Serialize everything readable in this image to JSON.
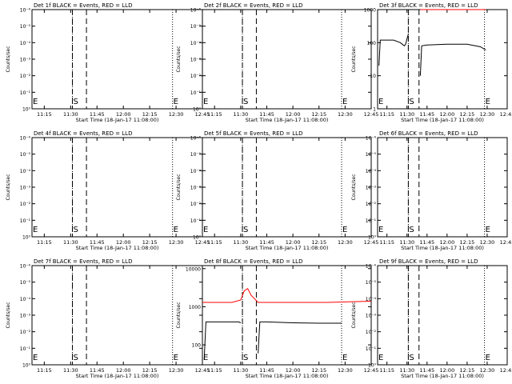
{
  "colors": {
    "events": "#000000",
    "lld": "#ff0000",
    "axes": "#000000"
  },
  "common": {
    "xlabel": "Start Time (18-Jan-17 11:08:00)",
    "ylabel": "Counts/sec",
    "x_ticks": [
      "11:15",
      "11:30",
      "11:45",
      "12:00",
      "12:15",
      "12:30",
      "12:45"
    ],
    "start_marker": "S",
    "end_marker": "E",
    "dotted_lines_x": [
      "11:08",
      "11:31",
      "12:28"
    ],
    "dashed_lines_x": [
      "11:31",
      "11:39"
    ]
  },
  "chart_data": [
    {
      "type": "line",
      "title": "Det 1f BLACK = Events, RED = LLD",
      "xlabel": "Start Time (18-Jan-17 11:08:00)",
      "ylabel": "Counts/sec",
      "y_scale": "log",
      "y_ticks": [
        "10⁰",
        "10⁻¹",
        "10⁻²",
        "10⁻³",
        "10⁻⁴",
        "10⁻⁵",
        "10⁻⁶"
      ],
      "series": []
    },
    {
      "type": "line",
      "title": "Det 2f BLACK = Events, RED = LLD",
      "xlabel": "Start Time (18-Jan-17 11:08:00)",
      "ylabel": "Counts/sec",
      "y_scale": "log",
      "y_ticks": [
        "10⁰",
        "10⁻¹",
        "10⁻²",
        "10⁻³",
        "10⁻⁴",
        "10⁻⁵",
        "10⁻⁶"
      ],
      "series": []
    },
    {
      "type": "line",
      "title": "Det 3f BLACK = Events, RED = LLD",
      "xlabel": "Start Time (18-Jan-17 11:08:00)",
      "ylabel": "Counts/sec",
      "y_scale": "log",
      "ylim": [
        1,
        1000
      ],
      "y_ticks": [
        "1",
        "10",
        "100",
        "1000"
      ],
      "series": [
        {
          "color": "#000000",
          "x": [
            "11:09",
            "11:10",
            "11:20",
            "11:25",
            "11:28",
            "11:29",
            "11:30",
            "11:31"
          ],
          "y": [
            20,
            120,
            120,
            100,
            80,
            90,
            130,
            180
          ]
        },
        {
          "color": "#000000",
          "x": [
            "11:40",
            "11:41",
            "11:45",
            "12:00",
            "12:15",
            "12:25",
            "12:29"
          ],
          "y": [
            10,
            80,
            85,
            90,
            90,
            75,
            60
          ]
        },
        {
          "color": "#ff0000",
          "x": [
            "11:40",
            "12:29"
          ],
          "y": [
            1000,
            1000
          ]
        }
      ]
    },
    {
      "type": "line",
      "title": "Det 4f BLACK = Events, RED = LLD",
      "xlabel": "Start Time (18-Jan-17 11:08:00)",
      "ylabel": "Counts/sec",
      "y_scale": "log",
      "y_ticks": [
        "10⁰",
        "10⁻¹",
        "10⁻²",
        "10⁻³",
        "10⁻⁴",
        "10⁻⁵",
        "10⁻⁶"
      ],
      "series": []
    },
    {
      "type": "line",
      "title": "Det 5f BLACK = Events, RED = LLD",
      "xlabel": "Start Time (18-Jan-17 11:08:00)",
      "ylabel": "Counts/sec",
      "y_scale": "log",
      "y_ticks": [
        "10⁰",
        "10⁻¹",
        "10⁻²",
        "10⁻³",
        "10⁻⁴",
        "10⁻⁵",
        "10⁻⁶"
      ],
      "series": []
    },
    {
      "type": "line",
      "title": "Det 6f BLACK = Events, RED = LLD",
      "xlabel": "Start Time (18-Jan-17 11:08:00)",
      "ylabel": "Counts/sec",
      "y_scale": "log",
      "y_ticks": [
        "10⁰",
        "10⁻¹",
        "10⁻²",
        "10⁻³",
        "10⁻⁴",
        "10⁻⁵",
        "10⁻⁶"
      ],
      "series": []
    },
    {
      "type": "line",
      "title": "Det 7f BLACK = Events, RED = LLD",
      "xlabel": "Start Time (18-Jan-17 11:08:00)",
      "ylabel": "Counts/sec",
      "y_scale": "log",
      "y_ticks": [
        "10⁰",
        "10⁻¹",
        "10⁻²",
        "10⁻³",
        "10⁻⁴",
        "10⁻⁵",
        "10⁻⁶"
      ],
      "series": []
    },
    {
      "type": "line",
      "title": "Det 8f BLACK = Events, RED = LLD",
      "xlabel": "Start Time (18-Jan-17 11:08:00)",
      "ylabel": "Counts/sec",
      "y_scale": "log",
      "ylim": [
        30,
        12000
      ],
      "y_ticks": [
        "100",
        "1000",
        "10000"
      ],
      "series": [
        {
          "color": "#000000",
          "x": [
            "11:09",
            "11:10",
            "11:20",
            "11:29",
            "11:30"
          ],
          "y": [
            40,
            400,
            400,
            400,
            380
          ]
        },
        {
          "color": "#000000",
          "x": [
            "11:40",
            "11:41",
            "11:45",
            "12:00",
            "12:15",
            "12:28"
          ],
          "y": [
            60,
            400,
            400,
            380,
            370,
            370
          ]
        },
        {
          "color": "#ff0000",
          "x": [
            "11:08",
            "11:25",
            "11:30",
            "11:32",
            "11:34",
            "11:36",
            "11:40",
            "12:00",
            "12:20",
            "12:45"
          ],
          "y": [
            1300,
            1300,
            1500,
            2600,
            3000,
            2000,
            1300,
            1300,
            1300,
            1400
          ]
        }
      ]
    },
    {
      "type": "line",
      "title": "Det 9f BLACK = Events, RED = LLD",
      "xlabel": "Start Time (18-Jan-17 11:08:00)",
      "ylabel": "Counts/sec",
      "y_scale": "log",
      "y_ticks": [
        "10⁰",
        "10⁻¹",
        "10⁻²",
        "10⁻³",
        "10⁻⁴",
        "10⁻⁵",
        "10⁻⁶"
      ],
      "series": []
    }
  ]
}
